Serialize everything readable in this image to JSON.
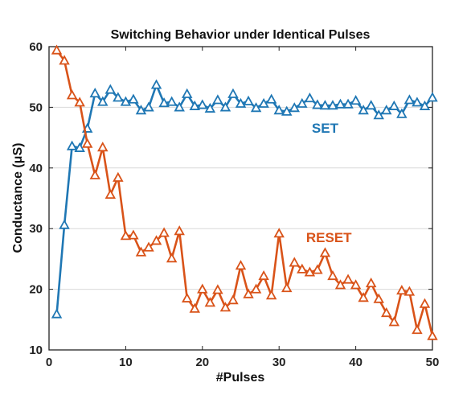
{
  "chart_data": {
    "type": "line",
    "title": "Switching Behavior under Identical Pulses",
    "xlabel": "#Pulses",
    "ylabel": "Conductance (μS)",
    "xlim": [
      0,
      50
    ],
    "ylim": [
      10,
      60
    ],
    "xticks": [
      0,
      10,
      20,
      30,
      40,
      50
    ],
    "yticks": [
      10,
      20,
      30,
      40,
      50,
      60
    ],
    "grid": "horizontal",
    "x": [
      1,
      2,
      3,
      4,
      5,
      6,
      7,
      8,
      9,
      10,
      11,
      12,
      13,
      14,
      15,
      16,
      17,
      18,
      19,
      20,
      21,
      22,
      23,
      24,
      25,
      26,
      27,
      28,
      29,
      30,
      31,
      32,
      33,
      34,
      35,
      36,
      37,
      38,
      39,
      40,
      41,
      42,
      43,
      44,
      45,
      46,
      47,
      48,
      49,
      50
    ],
    "series": [
      {
        "name": "SET",
        "color": "#1f77b4",
        "marker": "triangle-open",
        "values": [
          15.9,
          30.6,
          43.6,
          43.3,
          46.5,
          52.3,
          50.9,
          52.9,
          51.6,
          50.9,
          51.3,
          49.5,
          50.0,
          53.7,
          50.7,
          50.9,
          50.0,
          52.2,
          50.2,
          50.4,
          49.8,
          51.2,
          50.0,
          52.2,
          50.6,
          51.0,
          49.9,
          50.6,
          51.3,
          49.5,
          49.3,
          49.9,
          50.6,
          51.5,
          50.4,
          50.3,
          50.3,
          50.5,
          50.5,
          51.1,
          49.5,
          50.3,
          48.7,
          49.5,
          50.2,
          48.9,
          51.2,
          50.8,
          50.2,
          51.6
        ]
      },
      {
        "name": "RESET",
        "color": "#d95319",
        "marker": "triangle-open",
        "values": [
          59.4,
          57.7,
          52.0,
          50.8,
          44.0,
          38.8,
          43.4,
          35.6,
          38.4,
          28.8,
          28.9,
          26.1,
          26.9,
          28.0,
          29.3,
          25.1,
          29.6,
          18.5,
          16.8,
          20.0,
          17.8,
          19.9,
          17.0,
          18.2,
          23.9,
          19.2,
          20.0,
          22.2,
          19.0,
          29.2,
          20.2,
          24.4,
          23.3,
          22.8,
          23.2,
          26.0,
          22.2,
          20.7,
          21.6,
          20.7,
          18.6,
          21.0,
          18.4,
          16.1,
          14.6,
          19.8,
          19.6,
          13.3,
          17.6,
          12.3
        ]
      }
    ],
    "annotations": [
      {
        "text": "SET",
        "color": "#1f77b4",
        "x": 36,
        "y": 45.8
      },
      {
        "text": "RESET",
        "color": "#d95319",
        "x": 36.5,
        "y": 27.8
      }
    ]
  }
}
